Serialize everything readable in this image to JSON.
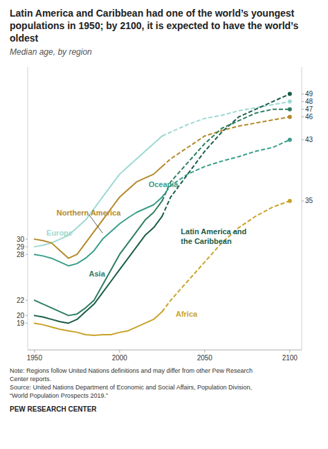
{
  "chart_data": {
    "type": "line",
    "title": "Latin America and Caribbean had one of the world’s youngest populations in 1950; by 2100, it is expected to have the world’s oldest",
    "subtitle": "Median age, by region",
    "note": "Note: Regions follow United Nations definitions and may differ from other Pew Research\nCenter reports.\nSource: United Nations Department of Economic and Social Affairs, Population Division,\n“World Population Prospects 2019.”",
    "source": "PEW RESEARCH CENTER",
    "x": [
      1950,
      1955,
      1960,
      1965,
      1970,
      1975,
      1980,
      1985,
      1990,
      1995,
      2000,
      2005,
      2010,
      2015,
      2020,
      2025,
      2030,
      2040,
      2050,
      2060,
      2070,
      2080,
      2090,
      2100
    ],
    "series": [
      {
        "color": "#9dd9d2",
        "line_style": "solid",
        "values": [
          29.0,
          29.2,
          29.5,
          30.0,
          30.5,
          31.5,
          32.5,
          34.0,
          35.5,
          37.0,
          38.5,
          39.5,
          40.5,
          41.5,
          42.5,
          43.5,
          null,
          null,
          null,
          null,
          null,
          null,
          null,
          null
        ]
      },
      {
        "color": "#9dd9d2",
        "line_style": "dashed",
        "values": [
          null,
          null,
          null,
          null,
          null,
          null,
          null,
          null,
          null,
          null,
          null,
          null,
          null,
          null,
          null,
          43.5,
          44.0,
          45.0,
          45.8,
          46.2,
          46.8,
          47.2,
          47.6,
          48.0
        ]
      },
      {
        "color": "#b5892a",
        "line_style": "solid",
        "values": [
          30.0,
          29.8,
          29.5,
          28.5,
          27.5,
          28.0,
          29.5,
          31.0,
          32.5,
          34.0,
          35.5,
          36.5,
          37.5,
          38.0,
          38.5,
          39.5,
          null,
          null,
          null,
          null,
          null,
          null,
          null,
          null
        ]
      },
      {
        "color": "#b5892a",
        "line_style": "dashed",
        "values": [
          null,
          null,
          null,
          null,
          null,
          null,
          null,
          null,
          null,
          null,
          null,
          null,
          null,
          null,
          null,
          39.5,
          40.5,
          42.0,
          43.5,
          44.2,
          44.8,
          45.2,
          45.6,
          46.0
        ]
      },
      {
        "color": "#3a9e8a",
        "line_style": "solid",
        "values": [
          28.0,
          27.8,
          27.5,
          27.0,
          26.5,
          26.8,
          27.5,
          28.5,
          30.0,
          31.0,
          32.0,
          32.8,
          33.5,
          34.0,
          34.5,
          35.5,
          null,
          null,
          null,
          null,
          null,
          null,
          null,
          null
        ]
      },
      {
        "color": "#3a9e8a",
        "line_style": "dashed",
        "values": [
          null,
          null,
          null,
          null,
          null,
          null,
          null,
          null,
          null,
          null,
          null,
          null,
          null,
          null,
          null,
          35.5,
          37.0,
          38.5,
          39.5,
          40.2,
          40.8,
          41.5,
          42.0,
          43.0
        ]
      },
      {
        "color": "#1a5c48",
        "line_style": "solid",
        "values": [
          20.0,
          19.8,
          19.5,
          19.2,
          19.0,
          19.5,
          20.5,
          21.5,
          23.0,
          24.5,
          26.0,
          27.5,
          29.0,
          30.5,
          31.5,
          33.0,
          null,
          null,
          null,
          null,
          null,
          null,
          null,
          null
        ]
      },
      {
        "color": "#1a5c48",
        "line_style": "dashed",
        "values": [
          null,
          null,
          null,
          null,
          null,
          null,
          null,
          null,
          null,
          null,
          null,
          null,
          null,
          null,
          null,
          33.0,
          35.5,
          38.5,
          41.5,
          44.0,
          46.0,
          47.0,
          48.0,
          49.0
        ]
      },
      {
        "color": "#2d7d5e",
        "line_style": "solid",
        "values": [
          22.0,
          21.5,
          21.0,
          20.5,
          20.0,
          20.2,
          21.0,
          22.0,
          24.0,
          26.0,
          28.0,
          29.5,
          31.0,
          32.5,
          33.5,
          35.0,
          null,
          null,
          null,
          null,
          null,
          null,
          null,
          null
        ]
      },
      {
        "color": "#2d7d5e",
        "line_style": "dashed",
        "values": [
          null,
          null,
          null,
          null,
          null,
          null,
          null,
          null,
          null,
          null,
          null,
          null,
          null,
          null,
          null,
          35.0,
          37.5,
          40.0,
          42.5,
          44.5,
          45.5,
          46.5,
          47.0,
          47.0
        ]
      },
      {
        "color": "#c9a227",
        "line_style": "solid",
        "values": [
          19.0,
          18.8,
          18.5,
          18.2,
          18.0,
          17.8,
          17.5,
          17.4,
          17.5,
          17.5,
          17.8,
          18.0,
          18.5,
          19.0,
          19.5,
          20.5,
          null,
          null,
          null,
          null,
          null,
          null,
          null,
          null
        ]
      },
      {
        "color": "#c9a227",
        "line_style": "dashed",
        "values": [
          null,
          null,
          null,
          null,
          null,
          null,
          null,
          null,
          null,
          null,
          null,
          null,
          null,
          null,
          null,
          20.5,
          22.0,
          24.5,
          27.0,
          29.5,
          31.5,
          33.0,
          34.2,
          35.0
        ]
      }
    ],
    "annotations": [
      {
        "text": "Europe",
        "x": 1957,
        "y": 30.8,
        "color": "#9dd9d2"
      },
      {
        "text": "Northern America",
        "x": 1963,
        "y": 33.5,
        "color": "#b5892a",
        "arrow": {
          "from": [
            1982,
            33.2
          ],
          "to": [
            1990,
            30.8
          ]
        }
      },
      {
        "text": "Oceania",
        "x": 2017,
        "y": 37.2,
        "color": "#3a9e8a"
      },
      {
        "text": "Latin America and\nthe Caribbean",
        "x": 2036,
        "y": 31.5,
        "color": "#1a5c48"
      },
      {
        "text": "Asia",
        "x": 1982,
        "y": 25.5,
        "color": "#2d7d5e"
      },
      {
        "text": "Africa",
        "x": 2033,
        "y": 20.2,
        "color": "#c9a227"
      }
    ],
    "xlim": [
      1946,
      2107
    ],
    "xticks": [
      1950,
      2000,
      2050,
      2100
    ],
    "ylim": [
      15.5,
      52.5
    ],
    "yticks": [
      19,
      20,
      22,
      28,
      29,
      30
    ],
    "y2lim": [
      15.5,
      52.5
    ],
    "y2ticks": [
      49,
      48,
      47,
      46,
      43,
      35
    ],
    "grid": false
  }
}
